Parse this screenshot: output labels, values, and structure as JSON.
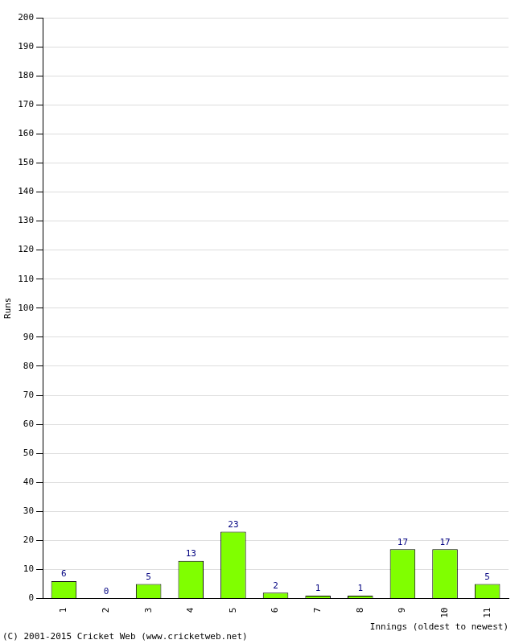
{
  "chart_data": {
    "type": "bar",
    "x_label": "Innings (oldest to newest)",
    "y_label": "Runs",
    "annotation": "(C) 2001-2015 Cricket Web (www.cricketweb.net)",
    "categories": [
      "1",
      "2",
      "3",
      "4",
      "5",
      "6",
      "7",
      "8",
      "9",
      "10",
      "11"
    ],
    "values": [
      6,
      0,
      5,
      13,
      23,
      2,
      1,
      1,
      17,
      17,
      5
    ],
    "color": "#80ff00",
    "ylim": [
      0,
      200
    ],
    "yticks": [
      0,
      10,
      20,
      30,
      40,
      50,
      60,
      70,
      80,
      90,
      100,
      110,
      120,
      130,
      140,
      150,
      160,
      170,
      180,
      190,
      200
    ],
    "grid": true,
    "data_labels": true
  }
}
